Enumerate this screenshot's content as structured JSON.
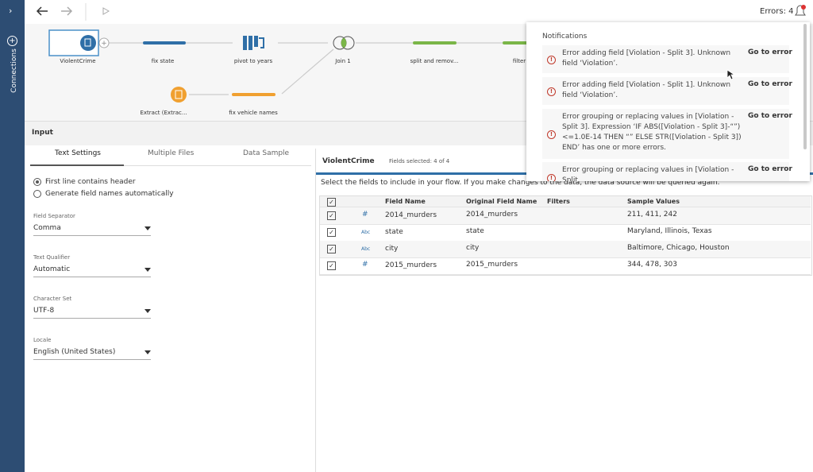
{
  "sidebar": {
    "label": "Connections"
  },
  "toolbar": {
    "errors": "Errors: 4"
  },
  "flow": {
    "nodes": [
      {
        "label": "ViolentCrime"
      },
      {
        "label": "fix state"
      },
      {
        "label": "pivot to years"
      },
      {
        "label": "Join 1"
      },
      {
        "label": "split and remov..."
      },
      {
        "label": "filter"
      },
      {
        "label": "Extract (Extrac..."
      },
      {
        "label": "fix vehicle names"
      }
    ]
  },
  "notifications": {
    "title": "Notifications",
    "items": [
      {
        "message": "Error adding field [Violation - Split 3]. Unknown field ‘Violation’.",
        "action": "Go to error"
      },
      {
        "message": "Error adding field [Violation - Split 1]. Unknown field ‘Violation’.",
        "action": "Go to error"
      },
      {
        "message": "Error grouping or replacing values in [Violation - Split 3]. Expression ‘IF ABS([Violation - Split 3]-“”)<=1.0E-14 THEN “” ELSE STR([Violation - Split 3]) END’ has one or more errors.",
        "action": "Go to error"
      },
      {
        "message": "Error grouping or replacing values in [Violation - Split",
        "action": "Go to error"
      }
    ]
  },
  "input": {
    "title": "Input",
    "tabs": [
      "Text Settings",
      "Multiple Files",
      "Data Sample"
    ],
    "options": [
      "First line contains header",
      "Generate field names automatically"
    ],
    "fields": [
      {
        "label": "Field Separator",
        "value": "Comma"
      },
      {
        "label": "Text Qualifier",
        "value": "Automatic"
      },
      {
        "label": "Character Set",
        "value": "UTF-8"
      },
      {
        "label": "Locale",
        "value": "English (United States)"
      }
    ]
  },
  "table": {
    "name": "ViolentCrime",
    "selected": "Fields selected: 4 of 4",
    "instruction": "Select the fields to include in your flow. If you make changes to the data, the data source will be queried again.",
    "headers": [
      "Field Name",
      "Original Field Name",
      "Filters",
      "Sample Values"
    ],
    "rows": [
      {
        "type": "#",
        "field": "2014_murders",
        "original": "2014_murders",
        "sample": "211, 411, 242"
      },
      {
        "type": "Abc",
        "field": "state",
        "original": "state",
        "sample": "Maryland, Illinois, Texas"
      },
      {
        "type": "Abc",
        "field": "city",
        "original": "city",
        "sample": "Baltimore, Chicago, Houston"
      },
      {
        "type": "#",
        "field": "2015_murders",
        "original": "2015_murders",
        "sample": "344, 478, 303"
      }
    ]
  }
}
